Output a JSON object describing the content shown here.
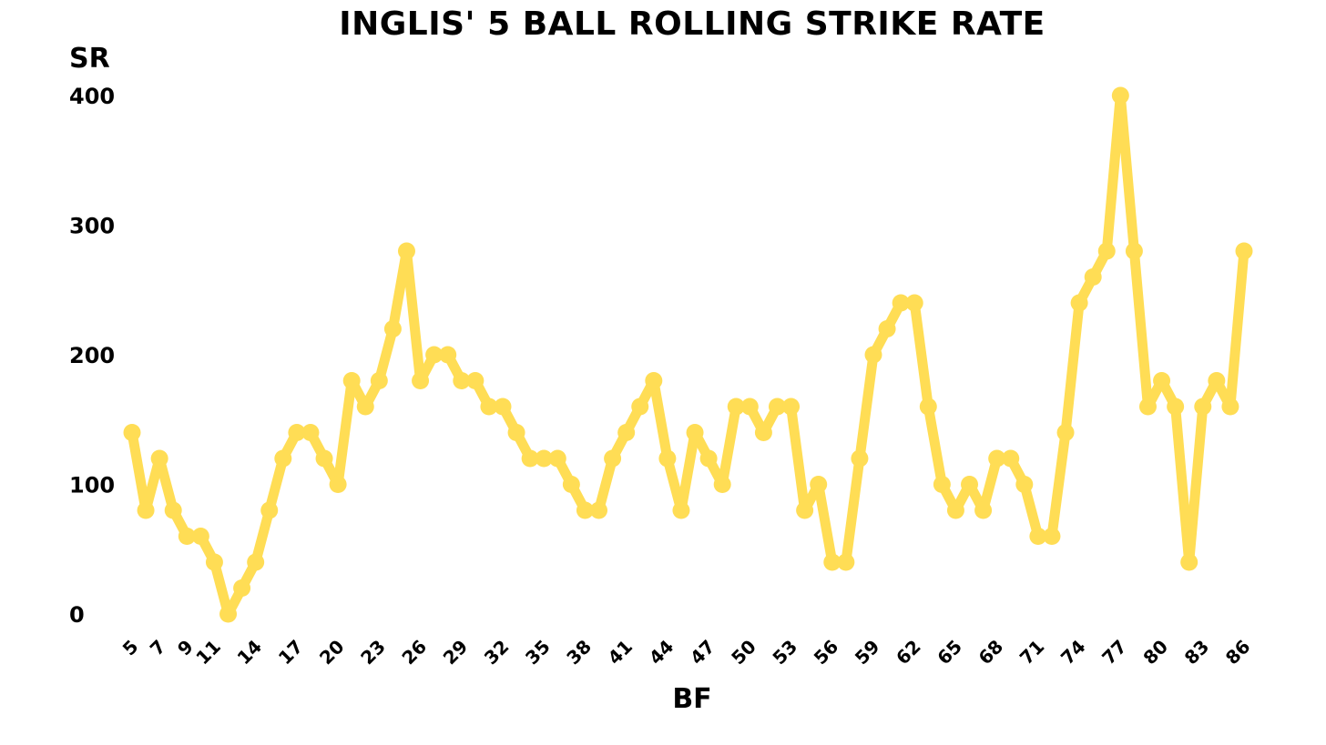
{
  "chart_data": {
    "type": "line",
    "title": "INGLIS' 5 BALL ROLLING STRIKE RATE",
    "xlabel": "BF",
    "ylabel": "SR",
    "x": [
      5,
      6,
      7,
      8,
      9,
      10,
      11,
      12,
      13,
      14,
      15,
      16,
      17,
      18,
      19,
      20,
      21,
      22,
      23,
      24,
      25,
      26,
      27,
      28,
      29,
      30,
      31,
      32,
      33,
      34,
      35,
      36,
      37,
      38,
      39,
      40,
      41,
      42,
      43,
      44,
      45,
      46,
      47,
      48,
      49,
      50,
      51,
      52,
      53,
      54,
      55,
      56,
      57,
      58,
      59,
      60,
      61,
      62,
      63,
      64,
      65,
      66,
      67,
      68,
      69,
      70,
      71,
      72,
      73,
      74,
      75,
      76,
      77,
      78,
      79,
      80,
      81,
      82,
      83,
      84,
      85,
      86
    ],
    "x_tick_labels": [
      "5",
      "7",
      "9",
      "11",
      "14",
      "17",
      "20",
      "23",
      "26",
      "29",
      "32",
      "35",
      "38",
      "41",
      "44",
      "47",
      "50",
      "53",
      "56",
      "59",
      "62",
      "65",
      "68",
      "71",
      "74",
      "77",
      "80",
      "83",
      "86"
    ],
    "series": [
      {
        "values": [
          140,
          80,
          120,
          80,
          60,
          60,
          40,
          0,
          20,
          40,
          80,
          120,
          140,
          140,
          120,
          100,
          180,
          160,
          180,
          220,
          280,
          180,
          200,
          200,
          180,
          180,
          160,
          160,
          140,
          120,
          120,
          120,
          100,
          80,
          80,
          120,
          140,
          160,
          180,
          120,
          80,
          140,
          120,
          100,
          160,
          160,
          140,
          160,
          160,
          80,
          100,
          40,
          40,
          120,
          200,
          220,
          240,
          240,
          160,
          100,
          80,
          100,
          80,
          120,
          120,
          100,
          60,
          60,
          140,
          240,
          260,
          280,
          400,
          280,
          160,
          180,
          160,
          40,
          160,
          180,
          160,
          280
        ]
      }
    ],
    "y_ticks": [
      0,
      100,
      200,
      300,
      400
    ],
    "ylim": [
      0,
      400
    ],
    "xlim": [
      5,
      86
    ],
    "grid": false,
    "line_color": "#FFDD55"
  }
}
